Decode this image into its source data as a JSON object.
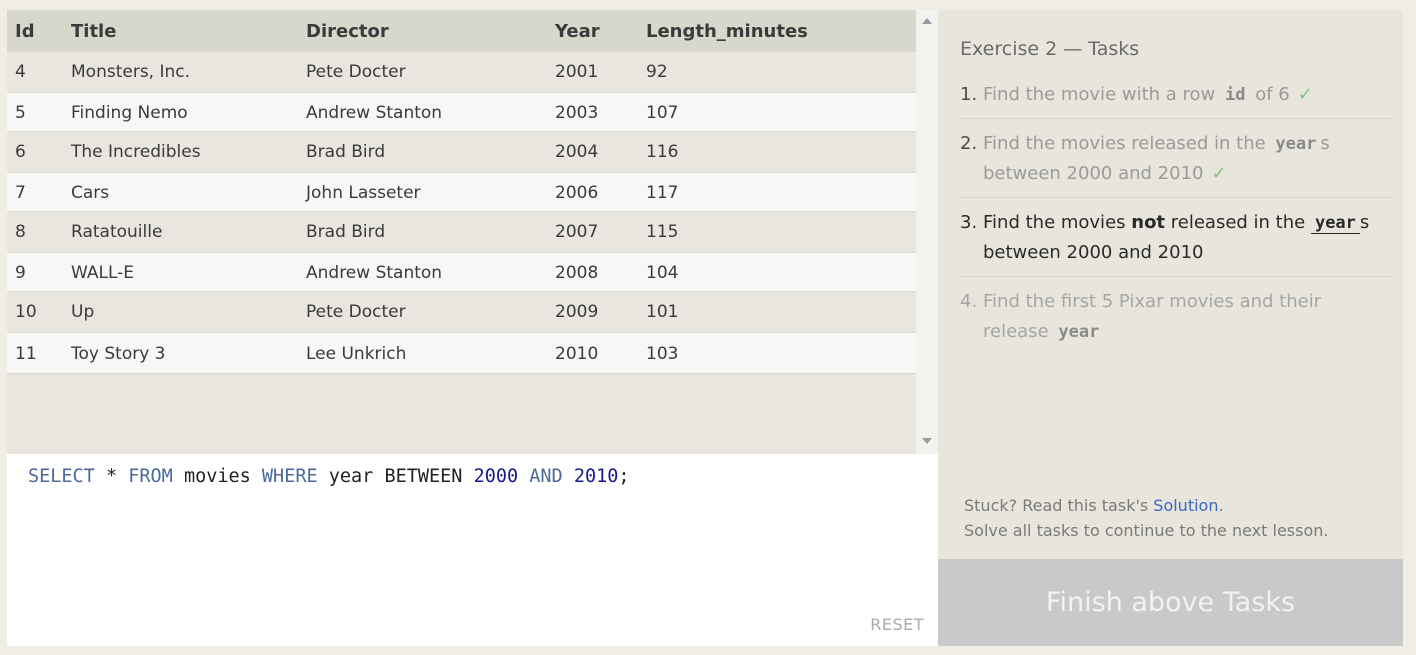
{
  "table": {
    "headers": [
      "Id",
      "Title",
      "Director",
      "Year",
      "Length_minutes"
    ],
    "rows": [
      [
        "4",
        "Monsters, Inc.",
        "Pete Docter",
        "2001",
        "92"
      ],
      [
        "5",
        "Finding Nemo",
        "Andrew Stanton",
        "2003",
        "107"
      ],
      [
        "6",
        "The Incredibles",
        "Brad Bird",
        "2004",
        "116"
      ],
      [
        "7",
        "Cars",
        "John Lasseter",
        "2006",
        "117"
      ],
      [
        "8",
        "Ratatouille",
        "Brad Bird",
        "2007",
        "115"
      ],
      [
        "9",
        "WALL-E",
        "Andrew Stanton",
        "2008",
        "104"
      ],
      [
        "10",
        "Up",
        "Pete Docter",
        "2009",
        "101"
      ],
      [
        "11",
        "Toy Story 3",
        "Lee Unkrich",
        "2010",
        "103"
      ]
    ]
  },
  "editor": {
    "query": {
      "select": "SELECT",
      "star": " * ",
      "from": "FROM",
      "table": " movies ",
      "where": "WHERE",
      "column": " year BETWEEN ",
      "low": "2000",
      "and": " AND ",
      "high": "2010",
      "end": ";"
    },
    "reset_label": "RESET"
  },
  "tasks": {
    "title": "Exercise 2 — Tasks",
    "items": [
      {
        "num": "1.",
        "pre": "Find the movie with a row ",
        "code": "id",
        "post": " of 6",
        "check": "✓"
      },
      {
        "num": "2.",
        "pre": "Find the movies released in the ",
        "code": "year",
        "post": "s between 2000 and 2010",
        "check": "✓"
      },
      {
        "num": "3.",
        "pre": "Find the movies ",
        "bold": "not",
        "mid": " released in the ",
        "code": "year",
        "post": "s between 2000 and 2010"
      },
      {
        "num": "4.",
        "pre": "Find the first 5 Pixar movies and their release ",
        "code": "year"
      }
    ],
    "stuck_pre": "Stuck? Read this task's ",
    "stuck_link": "Solution",
    "stuck_post": ".",
    "solve_note": "Solve all tasks to continue to the next lesson.",
    "finish_label": "Finish above Tasks"
  },
  "colors": {
    "check": "#7cc47c",
    "link": "#3a66c4",
    "keyword": "#4a6a9a",
    "number": "#1a1a8a"
  }
}
